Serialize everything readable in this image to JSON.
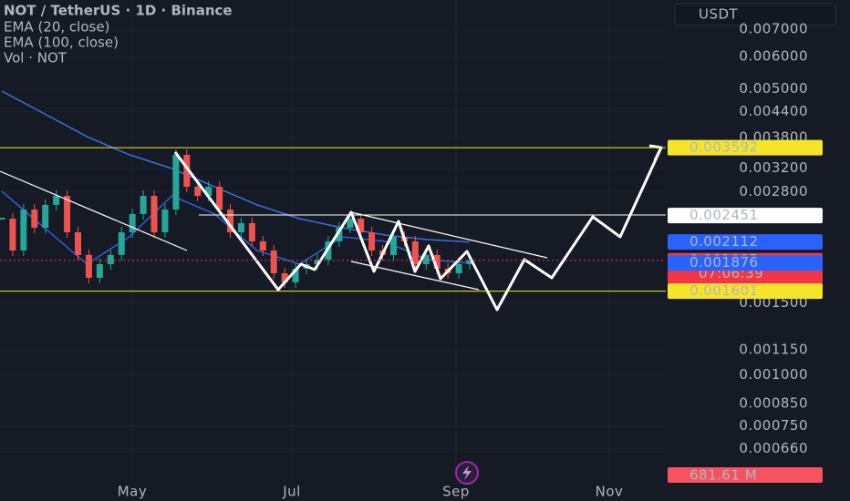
{
  "header": {
    "symbol": "NOT / TetherUS · 1D · Binance",
    "indicators": [
      "EMA (20, close)",
      "EMA (100, close)",
      "Vol · NOT"
    ],
    "currency": "USDT"
  },
  "chart_data": {
    "type": "candlestick",
    "log_scale": true,
    "grid": true,
    "ylim": [
      0.00055,
      0.008247
    ],
    "yticks": [
      {
        "value": 0.007,
        "label": "0.007000"
      },
      {
        "value": 0.006,
        "label": "0.006000"
      },
      {
        "value": 0.005,
        "label": "0.005000"
      },
      {
        "value": 0.0044,
        "label": "0.004400"
      },
      {
        "value": 0.0038,
        "label": "0.003800"
      },
      {
        "value": 0.0032,
        "label": "0.003200"
      },
      {
        "value": 0.0028,
        "label": "0.002800"
      },
      {
        "value": 0.0015,
        "label": "0.001500"
      },
      {
        "value": 0.00115,
        "label": "0.001150"
      },
      {
        "value": 0.001,
        "label": "0.001000"
      },
      {
        "value": 0.00085,
        "label": "0.000850"
      },
      {
        "value": 0.00075,
        "label": "0.000750"
      },
      {
        "value": 0.00066,
        "label": "0.000660"
      }
    ],
    "x_labels": [
      "May",
      "Jul",
      "Sep",
      "Nov"
    ],
    "series": [
      {
        "name": "NOT / TetherUS",
        "color": "#26a69a",
        "down_color": "#ef5350",
        "values": [
          0.002408,
          0.002013,
          0.002535,
          0.002288,
          0.002602,
          0.002738,
          0.00223,
          0.001963,
          0.001726,
          0.001864,
          0.001963,
          0.00223,
          0.002472,
          0.002738,
          0.00223,
          0.002535,
          0.00345,
          0.002883,
          0.002738,
          0.002883,
          0.002535,
          0.00223,
          0.002348,
          0.00212,
          0.002013,
          0.001771,
          0.001682,
          0.001817,
          0.001864,
          0.001912,
          0.00212,
          0.002288,
          0.002408,
          0.00223,
          0.002013,
          0.001963,
          0.002174,
          0.00212,
          0.001864,
          0.001963,
          0.001817,
          0.001771,
          0.001864,
          0.001905
        ]
      },
      {
        "name": "EMA (100, close)",
        "color": "#3b6fe0",
        "values": [
          0.004938,
          0.004346,
          0.003823,
          0.00345,
          0.003193,
          0.002883,
          0.002602,
          0.002408,
          0.002288,
          0.002197,
          0.002141,
          0.002112
        ]
      },
      {
        "name": "EMA (20, close)",
        "color": "#2f5fd8",
        "values": [
          0.00281,
          0.002288,
          0.001864,
          0.002174,
          0.002738,
          0.002472,
          0.002013,
          0.001864,
          0.002174,
          0.00212,
          0.001912,
          0.001876
        ]
      }
    ],
    "levels": [
      {
        "value": 0.003592,
        "color": "#f5e52a",
        "line": true
      },
      {
        "value": 0.002451,
        "color": "#ffffff",
        "line": true
      },
      {
        "value": 0.002112,
        "color": "#2962ff"
      },
      {
        "value": 0.001905,
        "color": "#f23645",
        "countdown": "07:06:39",
        "dotted": true
      },
      {
        "value": 0.001876,
        "color": "#2962ff"
      },
      {
        "value": 0.001601,
        "color": "#f5e52a",
        "line": true
      }
    ],
    "volume_label": "681.61 M"
  }
}
